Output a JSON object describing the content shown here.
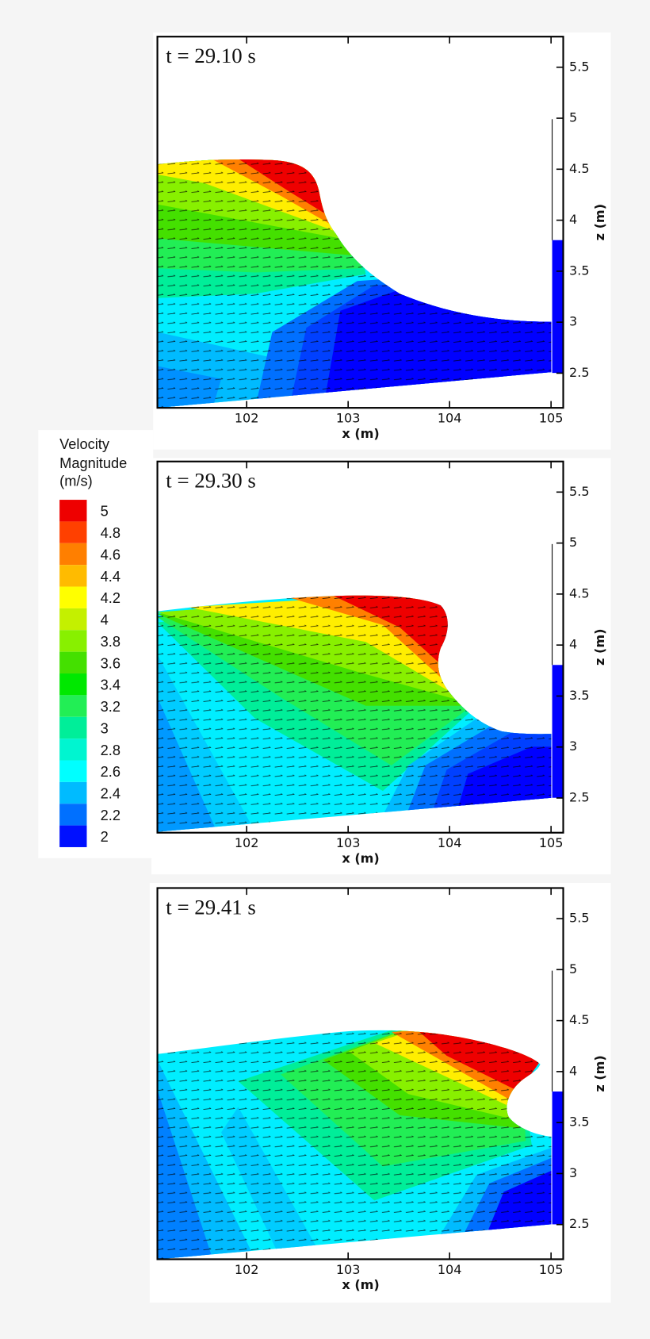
{
  "chart_data": [
    {
      "type": "contour",
      "title": "t = 29.10 s",
      "xlabel": "x (m)",
      "ylabel": "z (m)",
      "xlim": [
        101.12,
        105.12
      ],
      "ylim": [
        2.16,
        5.8
      ],
      "xticks": [
        102,
        103,
        104,
        105
      ],
      "yticks": [
        2.5,
        3,
        3.5,
        4,
        4.5,
        5,
        5.5
      ]
    },
    {
      "type": "contour",
      "title": "t = 29.30 s",
      "xlabel": "x (m)",
      "ylabel": "z (m)",
      "xlim": [
        101.12,
        105.12
      ],
      "ylim": [
        2.16,
        5.8
      ],
      "xticks": [
        102,
        103,
        104,
        105
      ],
      "yticks": [
        2.5,
        3,
        3.5,
        4,
        4.5,
        5,
        5.5
      ]
    },
    {
      "type": "contour",
      "title": "t = 29.41 s",
      "xlabel": "x (m)",
      "ylabel": "z (m)",
      "xlim": [
        101.12,
        105.12
      ],
      "ylim": [
        2.16,
        5.8
      ],
      "xticks": [
        102,
        103,
        104,
        105
      ],
      "yticks": [
        2.5,
        3,
        3.5,
        4,
        4.5,
        5,
        5.5
      ]
    }
  ],
  "colorbar": {
    "title": [
      "Velocity",
      "Magnitude",
      "(m/s)"
    ],
    "levels": [
      5,
      4.8,
      4.6,
      4.4,
      4.2,
      4,
      3.8,
      3.6,
      3.4,
      3.2,
      3,
      2.8,
      2.6,
      2.4,
      2.2,
      2
    ],
    "colors": [
      "#ee0000",
      "#ff4000",
      "#ff7f00",
      "#ffbb00",
      "#ffff00",
      "#c4f000",
      "#88f000",
      "#44e000",
      "#00e800",
      "#22ee55",
      "#00ee99",
      "#00f5d0",
      "#00ffff",
      "#00bbff",
      "#0070ff",
      "#0010ff"
    ]
  }
}
